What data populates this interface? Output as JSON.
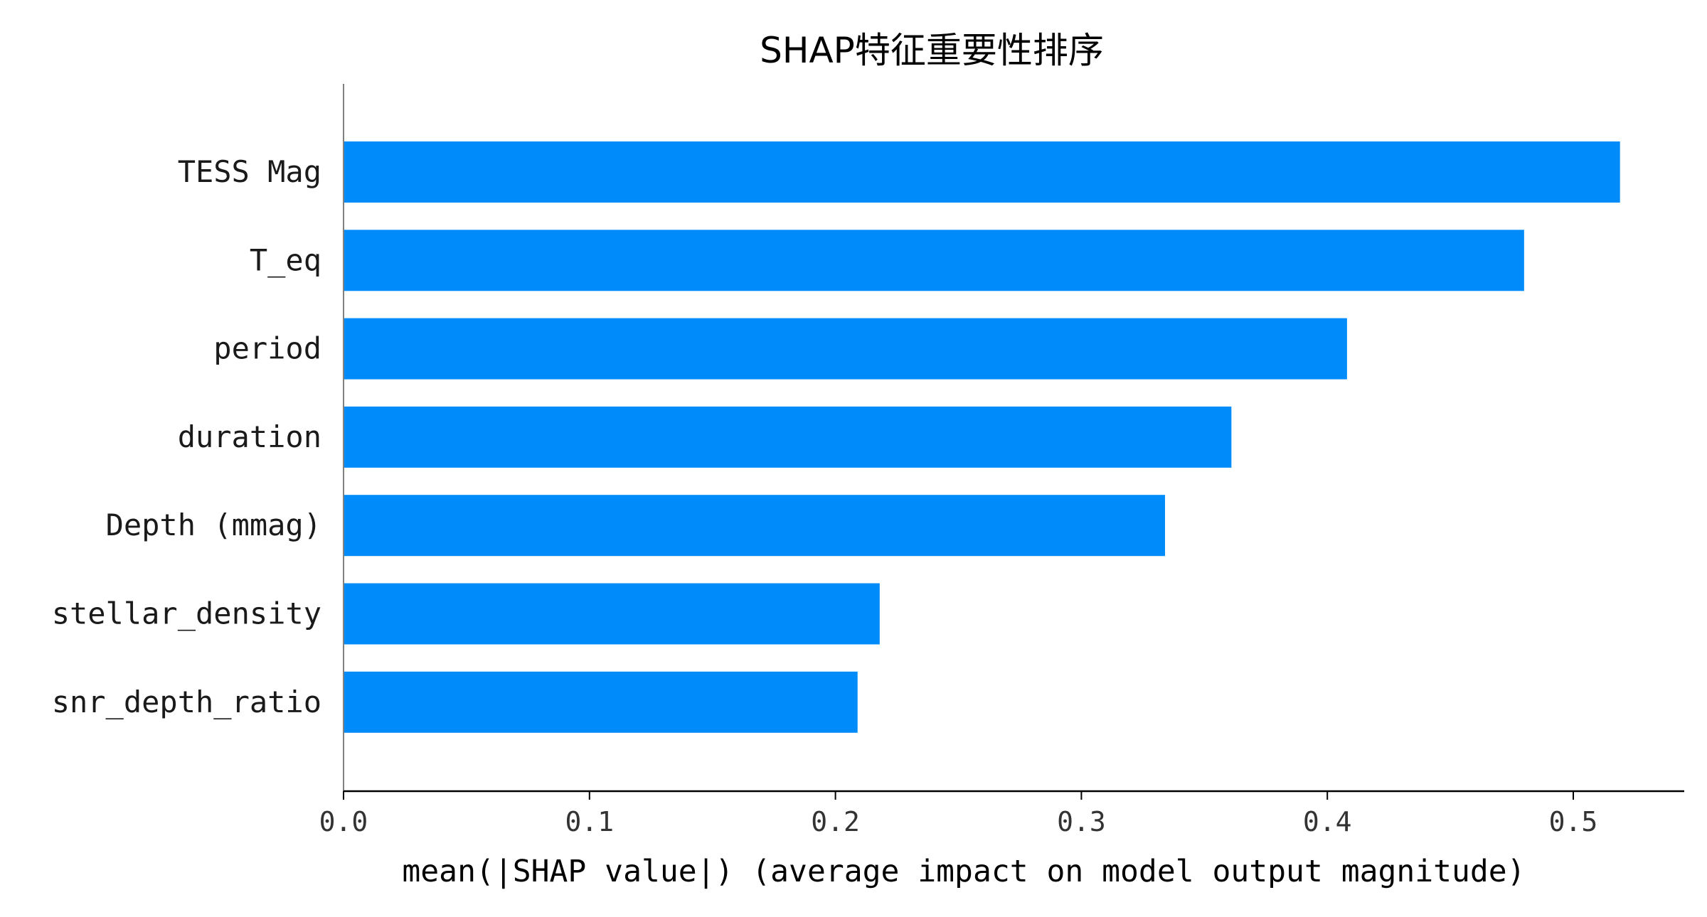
{
  "chart_data": {
    "type": "bar",
    "orientation": "horizontal",
    "title": "SHAP特征重要性排序",
    "xlabel": "mean(|SHAP value|) (average impact on model output magnitude)",
    "ylabel": "",
    "categories": [
      "TESS Mag",
      "T_eq",
      "period",
      "duration",
      "Depth (mmag)",
      "stellar_density",
      "snr_depth_ratio"
    ],
    "values": [
      0.519,
      0.48,
      0.408,
      0.361,
      0.334,
      0.218,
      0.209
    ],
    "xlim": [
      0.0,
      0.545
    ],
    "xticks": [
      0.0,
      0.1,
      0.2,
      0.3,
      0.4,
      0.5
    ],
    "xtick_labels": [
      "0.0",
      "0.1",
      "0.2",
      "0.3",
      "0.4",
      "0.5"
    ],
    "grid": false,
    "legend": "none",
    "bar_color": "#008bfb"
  }
}
